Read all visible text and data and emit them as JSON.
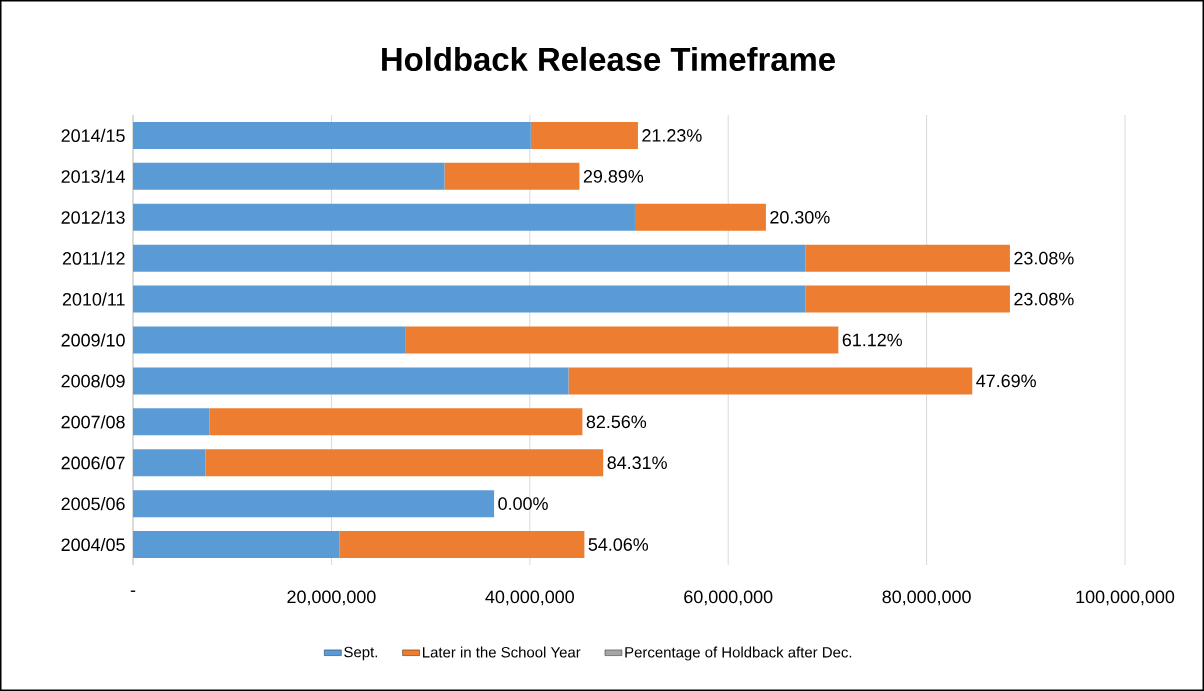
{
  "chart_data": {
    "type": "bar",
    "orientation": "horizontal",
    "stacked": true,
    "title": "Holdback Release Timeframe",
    "categories": [
      "2014/15",
      "2013/14",
      "2012/13",
      "2011/12",
      "2010/11",
      "2009/10",
      "2008/09",
      "2007/08",
      "2006/07",
      "2005/06",
      "2004/05"
    ],
    "series": [
      {
        "name": "Sept.",
        "color": "#5b9bd5",
        "values": [
          40100000,
          31400000,
          50600000,
          67800000,
          67800000,
          27500000,
          43900000,
          7700000,
          7300000,
          36400000,
          20800000
        ]
      },
      {
        "name": "Later in the School Year",
        "color": "#ed7d31",
        "values": [
          10800000,
          13600000,
          13200000,
          20600000,
          20600000,
          43600000,
          40700000,
          37600000,
          40100000,
          0,
          24700000
        ]
      },
      {
        "name": "Percentage of Holdback after Dec.",
        "color": "#a5a5a5",
        "values": [
          null,
          null,
          null,
          null,
          null,
          null,
          null,
          null,
          null,
          null,
          null
        ]
      }
    ],
    "annotations": [
      {
        "text": "21.23%",
        "x": 50900000,
        "y": "2014/15"
      },
      {
        "text": "29.89%",
        "x": 45000000,
        "y": "2013/14"
      },
      {
        "text": "20.30%",
        "x": 63800000,
        "y": "2012/13"
      },
      {
        "text": "23.08%",
        "x": 88400000,
        "y": "2011/12"
      },
      {
        "text": "23.08%",
        "x": 88400000,
        "y": "2010/11"
      },
      {
        "text": "61.12%",
        "x": 71100000,
        "y": "2009/10"
      },
      {
        "text": "47.69%",
        "x": 84600000,
        "y": "2008/09"
      },
      {
        "text": "82.56%",
        "x": 45300000,
        "y": "2007/08"
      },
      {
        "text": "84.31%",
        "x": 47400000,
        "y": "2006/07"
      },
      {
        "text": "0.00%",
        "x": 36400000,
        "y": "2005/06"
      },
      {
        "text": "54.06%",
        "x": 45500000,
        "y": "2004/05"
      }
    ],
    "xlim": [
      0,
      100000000
    ],
    "xticks": [
      {
        "value": 0,
        "label": "-"
      },
      {
        "value": 20000000,
        "label": "20,000,000"
      },
      {
        "value": 40000000,
        "label": "40,000,000"
      },
      {
        "value": 60000000,
        "label": "60,000,000"
      },
      {
        "value": 80000000,
        "label": "80,000,000"
      },
      {
        "value": 100000000,
        "label": "100,000,000"
      }
    ],
    "grid": "x",
    "legend": "bottom"
  }
}
